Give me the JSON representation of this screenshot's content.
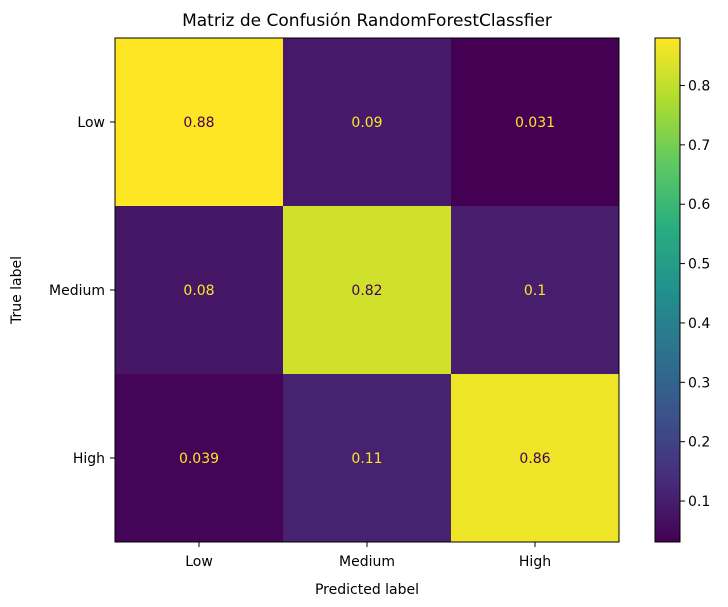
{
  "chart_data": {
    "type": "heatmap",
    "title": "Matriz de Confusión RandomForestClassfier",
    "xlabel": "Predicted label",
    "ylabel": "True label",
    "x_categories": [
      "Low",
      "Medium",
      "High"
    ],
    "y_categories": [
      "Low",
      "Medium",
      "High"
    ],
    "values": [
      [
        0.88,
        0.09,
        0.031
      ],
      [
        0.08,
        0.82,
        0.1
      ],
      [
        0.039,
        0.11,
        0.86
      ]
    ],
    "value_labels": [
      [
        "0.88",
        "0.09",
        "0.031"
      ],
      [
        "0.08",
        "0.82",
        "0.1"
      ],
      [
        "0.039",
        "0.11",
        "0.86"
      ]
    ],
    "colormap": "viridis",
    "colorbar": {
      "range": [
        0.031,
        0.88
      ],
      "ticks": [
        0.1,
        0.2,
        0.3,
        0.4,
        0.5,
        0.6,
        0.7,
        0.8
      ],
      "tick_labels": [
        "0.1",
        "0.2",
        "0.3",
        "0.4",
        "0.5",
        "0.6",
        "0.7",
        "0.8"
      ]
    },
    "annotation_colors": {
      "on_dark": "#fde725",
      "on_light": "#440154"
    }
  }
}
